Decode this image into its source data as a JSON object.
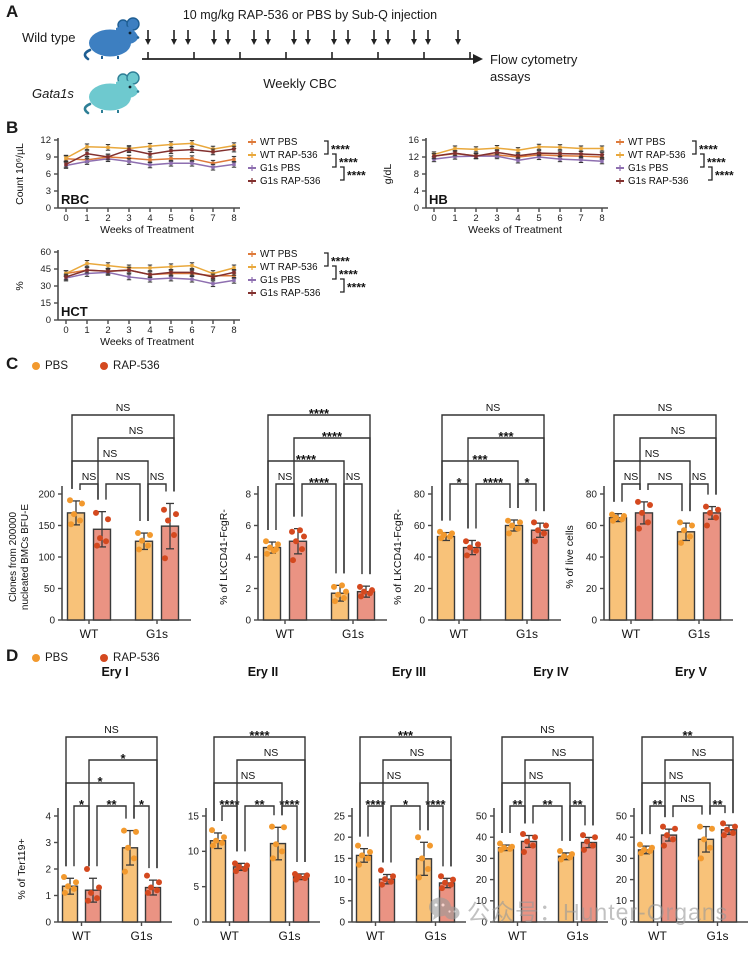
{
  "panel_a": {
    "label": "A",
    "mouse1_label": "Wild type",
    "mouse2_label": "Gata1s",
    "injection_text": "10 mg/kg RAP-536 or PBS by Sub-Q injection",
    "timeline_text": "Weekly CBC",
    "endpoint_text": "Flow cytometry\nassays",
    "n_injection_arrows": 16,
    "n_week_ticks": 8
  },
  "panel_b": {
    "label": "B"
  },
  "panel_c": {
    "label": "C"
  },
  "panel_d": {
    "label": "D"
  },
  "bar_legend": {
    "pbs": "PBS",
    "rap": "RAP-536"
  },
  "watermark": {
    "icon": "wechat-icon",
    "text": "公众号：Hunter-Organs"
  },
  "colors": {
    "pbs_bar": "#F8C279",
    "rap_bar": "#EA9383",
    "pbs_dot": "#F2992E",
    "rap_dot": "#D4491F",
    "bar_stroke": "#3a3a3a",
    "err": "#3a3a3a",
    "axis": "#4a4a4a",
    "wt_pbs": "#DE7A3A",
    "wt_rap": "#E9A83C",
    "g1s_pbs": "#8E6FB0",
    "g1s_rap": "#82302E",
    "wt_mouse": "#3D7FC1",
    "wt_mouse_dark": "#1E5E93",
    "g1s_mouse": "#6EC9CF",
    "g1s_mouse_dark": "#2E7F96"
  },
  "chart_data": [
    {
      "id": "rbc",
      "panel": "B",
      "type": "line",
      "title": "RBC",
      "xlabel": "Weeks of Treatment",
      "ylabel": "Count 10⁶/µL",
      "x": [
        0,
        1,
        2,
        3,
        4,
        5,
        6,
        7,
        8
      ],
      "ylim": [
        0,
        12
      ],
      "yticks": [
        0,
        3,
        6,
        9,
        12
      ],
      "legend_position": "right",
      "grid": false,
      "series": [
        {
          "name": "WT PBS",
          "colorKey": "wt_pbs",
          "err": 0.5,
          "values": [
            8.7,
            8.5,
            9.0,
            8.8,
            8.5,
            8.7,
            8.7,
            7.9,
            8.6
          ]
        },
        {
          "name": "WT RAP-536",
          "colorKey": "wt_rap",
          "err": 0.5,
          "values": [
            8.8,
            10.8,
            10.7,
            10.5,
            10.9,
            11.2,
            11.4,
            10.4,
            11.0
          ]
        },
        {
          "name": "G1s PBS",
          "colorKey": "g1s_pbs",
          "err": 0.5,
          "values": [
            7.5,
            8.2,
            8.7,
            8.2,
            7.6,
            7.9,
            7.9,
            7.2,
            7.7
          ]
        },
        {
          "name": "G1s RAP-536",
          "colorKey": "g1s_rap",
          "err": 0.5,
          "values": [
            7.7,
            9.6,
            9.0,
            10.3,
            9.5,
            10.1,
            10.3,
            9.9,
            10.4
          ]
        }
      ],
      "legend_sig": [
        "****",
        "****",
        "****"
      ]
    },
    {
      "id": "hb",
      "panel": "B",
      "type": "line",
      "title": "HB",
      "xlabel": "Weeks of Treatment",
      "ylabel": "g/dL",
      "x": [
        0,
        1,
        2,
        3,
        4,
        5,
        6,
        7,
        8
      ],
      "ylim": [
        0,
        16
      ],
      "yticks": [
        0,
        4,
        8,
        12,
        16
      ],
      "legend_position": "right",
      "grid": false,
      "series": [
        {
          "name": "WT PBS",
          "colorKey": "wt_pbs",
          "err": 0.6,
          "values": [
            12.2,
            12.8,
            12.3,
            12.5,
            12.0,
            12.5,
            12.3,
            12.2,
            12.0
          ]
        },
        {
          "name": "WT RAP-536",
          "colorKey": "wt_rap",
          "err": 0.6,
          "values": [
            12.6,
            14.0,
            13.8,
            14.1,
            13.6,
            14.4,
            14.3,
            14.0,
            14.0
          ]
        },
        {
          "name": "G1s PBS",
          "colorKey": "g1s_pbs",
          "err": 0.6,
          "values": [
            11.5,
            12.1,
            12.2,
            12.2,
            11.2,
            12.0,
            11.5,
            11.3,
            11.0
          ]
        },
        {
          "name": "G1s RAP-536",
          "colorKey": "g1s_rap",
          "err": 0.6,
          "values": [
            12.2,
            12.9,
            12.2,
            13.1,
            12.3,
            12.9,
            12.8,
            12.7,
            12.5
          ]
        }
      ],
      "legend_sig": [
        "****",
        "****",
        "****"
      ]
    },
    {
      "id": "hct",
      "panel": "B",
      "type": "line",
      "title": "HCT",
      "xlabel": "Weeks of Treatment",
      "ylabel": "%",
      "x": [
        0,
        1,
        2,
        3,
        4,
        5,
        6,
        7,
        8
      ],
      "ylim": [
        0,
        60
      ],
      "yticks": [
        0,
        15,
        30,
        45,
        60
      ],
      "legend_position": "right",
      "grid": false,
      "series": [
        {
          "name": "WT PBS",
          "colorKey": "wt_pbs",
          "err": 2.5,
          "values": [
            41,
            44,
            43,
            44,
            40,
            41,
            41,
            39,
            39
          ]
        },
        {
          "name": "WT RAP-536",
          "colorKey": "wt_rap",
          "err": 2.5,
          "values": [
            41,
            50,
            48,
            46,
            46,
            47,
            48,
            41,
            46
          ]
        },
        {
          "name": "G1s PBS",
          "colorKey": "g1s_pbs",
          "err": 2.5,
          "values": [
            37,
            41,
            42,
            38,
            36,
            37,
            36,
            32,
            35
          ]
        },
        {
          "name": "G1s RAP-536",
          "colorKey": "g1s_rap",
          "err": 2.5,
          "values": [
            38,
            44,
            43,
            44,
            40,
            42,
            42,
            38,
            42
          ]
        }
      ],
      "legend_sig": [
        "****",
        "****",
        "****"
      ]
    },
    {
      "id": "c-bfue",
      "panel": "C",
      "type": "bar",
      "title": "",
      "ylabel": "Clones from 200000",
      "ylabel2": "nucleated BMCs BFU-E",
      "categories": [
        "WT PBS",
        "WT RAP-536",
        "G1s PBS",
        "G1s RAP-536"
      ],
      "groups": [
        "WT",
        "G1s"
      ],
      "ylim": [
        0,
        200
      ],
      "yticks": [
        0,
        50,
        100,
        150,
        200
      ],
      "values": [
        170,
        144,
        125,
        149
      ],
      "errors": [
        19,
        28,
        13,
        36
      ],
      "points": [
        [
          152,
          158,
          168,
          185,
          190
        ],
        [
          118,
          125,
          130,
          160,
          170
        ],
        [
          112,
          118,
          126,
          135,
          138
        ],
        [
          98,
          135,
          158,
          168,
          175
        ]
      ],
      "brackets": [
        [
          0,
          1,
          "NS",
          0
        ],
        [
          1,
          2,
          "NS",
          0
        ],
        [
          2,
          3,
          "NS",
          0
        ],
        [
          0,
          2,
          "NS",
          1
        ],
        [
          1,
          3,
          "NS",
          2
        ],
        [
          0,
          3,
          "NS",
          3
        ]
      ]
    },
    {
      "id": "c-lkcd41-a",
      "panel": "C",
      "type": "bar",
      "title": "",
      "ylabel": "% of LKCD41-FcgR-",
      "categories": [
        "WT PBS",
        "WT RAP-536",
        "G1s PBS",
        "G1s RAP-536"
      ],
      "groups": [
        "WT",
        "G1s"
      ],
      "ylim": [
        0,
        8
      ],
      "yticks": [
        0,
        2,
        4,
        6,
        8
      ],
      "values": [
        4.6,
        5.0,
        1.7,
        1.8
      ],
      "errors": [
        0.35,
        0.8,
        0.5,
        0.35
      ],
      "points": [
        [
          4.2,
          4.5,
          4.6,
          4.8,
          5.0,
          4.4
        ],
        [
          3.8,
          4.5,
          5.0,
          5.3,
          5.6,
          5.7
        ],
        [
          1.2,
          1.4,
          1.6,
          1.8,
          2.1,
          2.2
        ],
        [
          1.5,
          1.7,
          1.8,
          1.9,
          2.1
        ]
      ],
      "brackets": [
        [
          0,
          1,
          "NS",
          0
        ],
        [
          1,
          2,
          "****",
          0
        ],
        [
          2,
          3,
          "NS",
          0
        ],
        [
          0,
          2,
          "****",
          1
        ],
        [
          1,
          3,
          "****",
          2
        ],
        [
          0,
          3,
          "****",
          3
        ]
      ]
    },
    {
      "id": "c-lkcd41-b",
      "panel": "C",
      "type": "bar",
      "title": "",
      "ylabel": "% of LKCD41-FcgR-",
      "categories": [
        "WT PBS",
        "WT RAP-536",
        "G1s PBS",
        "G1s RAP-536"
      ],
      "groups": [
        "WT",
        "G1s"
      ],
      "ylim": [
        0,
        80
      ],
      "yticks": [
        0,
        20,
        40,
        60,
        80
      ],
      "values": [
        53,
        46,
        60,
        57
      ],
      "errors": [
        2.5,
        4.5,
        3.5,
        4.5
      ],
      "points": [
        [
          52,
          53,
          54,
          55,
          56
        ],
        [
          41,
          44,
          46,
          48,
          50
        ],
        [
          55,
          58,
          60,
          62,
          63
        ],
        [
          50,
          55,
          57,
          60,
          62
        ]
      ],
      "brackets": [
        [
          0,
          1,
          "*",
          0
        ],
        [
          1,
          2,
          "****",
          0
        ],
        [
          2,
          3,
          "*",
          0
        ],
        [
          0,
          2,
          "***",
          1
        ],
        [
          1,
          3,
          "***",
          2
        ],
        [
          0,
          3,
          "NS",
          3
        ]
      ]
    },
    {
      "id": "c-live",
      "panel": "C",
      "type": "bar",
      "title": "",
      "ylabel": "% of live cells",
      "categories": [
        "WT PBS",
        "WT RAP-536",
        "G1s PBS",
        "G1s RAP-536"
      ],
      "groups": [
        "WT",
        "G1s"
      ],
      "ylim": [
        0,
        80
      ],
      "yticks": [
        0,
        20,
        40,
        60,
        80
      ],
      "values": [
        65,
        68,
        56,
        68
      ],
      "errors": [
        2.5,
        7,
        5.5,
        4
      ],
      "points": [
        [
          63,
          64,
          65,
          66,
          67
        ],
        [
          58,
          62,
          68,
          73,
          75
        ],
        [
          49,
          53,
          57,
          60,
          62
        ],
        [
          60,
          65,
          68,
          70,
          72
        ]
      ],
      "brackets": [
        [
          0,
          1,
          "NS",
          0
        ],
        [
          1,
          2,
          "NS",
          0
        ],
        [
          2,
          3,
          "NS",
          0
        ],
        [
          0,
          2,
          "NS",
          1
        ],
        [
          1,
          3,
          "NS",
          2
        ],
        [
          0,
          3,
          "NS",
          3
        ]
      ]
    },
    {
      "id": "d-ery1",
      "panel": "D",
      "type": "bar",
      "title": "Ery I",
      "ylabel": "% of Ter119+",
      "categories": [
        "WT PBS",
        "WT RAP-536",
        "G1s PBS",
        "G1s RAP-536"
      ],
      "groups": [
        "WT",
        "G1s"
      ],
      "ylim": [
        0,
        4
      ],
      "yticks": [
        0,
        1,
        2,
        3,
        4
      ],
      "values": [
        1.35,
        1.2,
        2.8,
        1.3
      ],
      "errors": [
        0.3,
        0.45,
        0.65,
        0.28
      ],
      "points": [
        [
          1.1,
          1.25,
          1.35,
          1.5,
          1.7
        ],
        [
          0.8,
          0.9,
          1.1,
          1.3,
          2.0
        ],
        [
          1.9,
          2.4,
          2.8,
          3.4,
          3.45
        ],
        [
          1.1,
          1.2,
          1.3,
          1.5,
          1.75
        ]
      ],
      "brackets": [
        [
          0,
          1,
          "*",
          0
        ],
        [
          1,
          2,
          "**",
          0
        ],
        [
          2,
          3,
          "*",
          0
        ],
        [
          0,
          2,
          "*",
          1
        ],
        [
          1,
          3,
          "*",
          2
        ],
        [
          0,
          3,
          "NS",
          3
        ]
      ]
    },
    {
      "id": "d-ery2",
      "panel": "D",
      "type": "bar",
      "title": "Ery II",
      "ylabel": "",
      "categories": [
        "WT PBS",
        "WT RAP-536",
        "G1s PBS",
        "G1s RAP-536"
      ],
      "groups": [
        "WT",
        "G1s"
      ],
      "ylim": [
        0,
        15
      ],
      "yticks": [
        0,
        5,
        10,
        15
      ],
      "values": [
        11.5,
        7.8,
        11.1,
        6.4
      ],
      "errors": [
        1.1,
        0.5,
        2.3,
        0.4
      ],
      "points": [
        [
          10.8,
          11.2,
          11.5,
          12.0,
          13.0
        ],
        [
          7.2,
          7.5,
          7.8,
          8.0,
          8.3
        ],
        [
          9.0,
          10.0,
          11.0,
          13.4,
          13.5
        ],
        [
          6.0,
          6.2,
          6.4,
          6.6,
          6.8
        ]
      ],
      "brackets": [
        [
          0,
          1,
          "****",
          0
        ],
        [
          1,
          2,
          "**",
          0
        ],
        [
          2,
          3,
          "****",
          0
        ],
        [
          0,
          2,
          "NS",
          1
        ],
        [
          1,
          3,
          "NS",
          2
        ],
        [
          0,
          3,
          "****",
          3
        ]
      ]
    },
    {
      "id": "d-ery3",
      "panel": "D",
      "type": "bar",
      "title": "Ery III",
      "ylabel": "",
      "categories": [
        "WT PBS",
        "WT RAP-536",
        "G1s PBS",
        "G1s RAP-536"
      ],
      "groups": [
        "WT",
        "G1s"
      ],
      "ylim": [
        0,
        25
      ],
      "yticks": [
        0,
        5,
        10,
        15,
        20,
        25
      ],
      "values": [
        15.7,
        10.1,
        14.9,
        9.2
      ],
      "errors": [
        1.6,
        1.1,
        3.9,
        1.1
      ],
      "points": [
        [
          13.5,
          15.0,
          15.7,
          16.5,
          18.0
        ],
        [
          8.8,
          9.5,
          10.1,
          10.8,
          12.2
        ],
        [
          10.5,
          12.5,
          15.0,
          18.0,
          20.0
        ],
        [
          8.0,
          8.8,
          9.3,
          10.0,
          10.8
        ]
      ],
      "brackets": [
        [
          0,
          1,
          "****",
          0
        ],
        [
          1,
          2,
          "*",
          0
        ],
        [
          2,
          3,
          "****",
          0
        ],
        [
          0,
          2,
          "NS",
          1
        ],
        [
          1,
          3,
          "NS",
          2
        ],
        [
          0,
          3,
          "***",
          3
        ]
      ]
    },
    {
      "id": "d-ery4",
      "panel": "D",
      "type": "bar",
      "title": "Ery IV",
      "ylabel": "",
      "categories": [
        "WT PBS",
        "WT RAP-536",
        "G1s PBS",
        "G1s RAP-536"
      ],
      "groups": [
        "WT",
        "G1s"
      ],
      "ylim": [
        0,
        50
      ],
      "yticks": [
        0,
        10,
        20,
        30,
        40,
        50
      ],
      "values": [
        35,
        38,
        31,
        37.5
      ],
      "errors": [
        1.3,
        2.8,
        1.6,
        2.4
      ],
      "points": [
        [
          34,
          34.5,
          35,
          35.5,
          37
        ],
        [
          33,
          36,
          38,
          40,
          41.5
        ],
        [
          29.5,
          30.5,
          31,
          32,
          33.5
        ],
        [
          34,
          36,
          38,
          40,
          41
        ]
      ],
      "brackets": [
        [
          0,
          1,
          "**",
          0
        ],
        [
          1,
          2,
          "**",
          0
        ],
        [
          2,
          3,
          "**",
          0
        ],
        [
          0,
          2,
          "NS",
          1
        ],
        [
          1,
          3,
          "NS",
          2
        ],
        [
          0,
          3,
          "NS",
          3
        ]
      ]
    },
    {
      "id": "d-ery5",
      "panel": "D",
      "type": "bar",
      "title": "Ery V",
      "ylabel": "",
      "categories": [
        "WT PBS",
        "WT RAP-536",
        "G1s PBS",
        "G1s RAP-536"
      ],
      "groups": [
        "WT",
        "G1s"
      ],
      "ylim": [
        0,
        50
      ],
      "yticks": [
        0,
        10,
        20,
        30,
        40,
        50
      ],
      "values": [
        34,
        41,
        39,
        43.5
      ],
      "errors": [
        1.8,
        2.8,
        6,
        2.2
      ],
      "points": [
        [
          32.5,
          33.5,
          34,
          35,
          36.5
        ],
        [
          36,
          39,
          41,
          44,
          45
        ],
        [
          30,
          35,
          39,
          44,
          45
        ],
        [
          41,
          42,
          43.5,
          45,
          46.5
        ]
      ],
      "brackets": [
        [
          0,
          1,
          "**",
          0
        ],
        [
          1,
          2,
          "NS",
          0
        ],
        [
          2,
          3,
          "**",
          0
        ],
        [
          0,
          2,
          "NS",
          1
        ],
        [
          1,
          3,
          "NS",
          2
        ],
        [
          0,
          3,
          "**",
          3
        ]
      ]
    }
  ]
}
